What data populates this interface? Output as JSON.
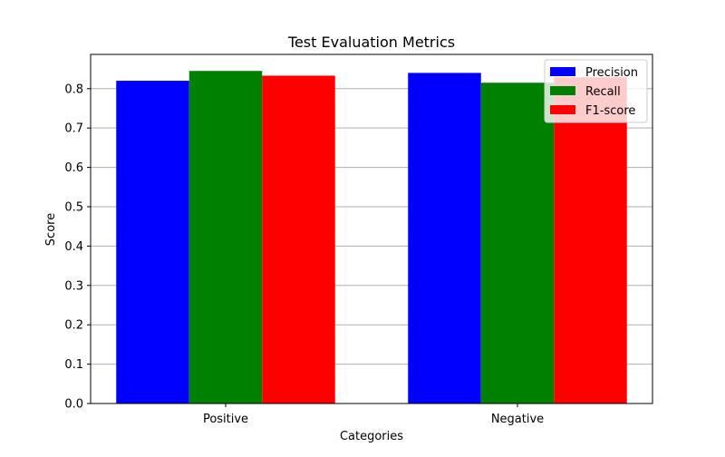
{
  "chart_data": {
    "type": "bar",
    "title": "Test Evaluation Metrics",
    "xlabel": "Categories",
    "ylabel": "Score",
    "categories": [
      "Positive",
      "Negative"
    ],
    "series": [
      {
        "name": "Precision",
        "color": "#0000ff",
        "values": [
          0.82,
          0.84
        ]
      },
      {
        "name": "Recall",
        "color": "#008000",
        "values": [
          0.845,
          0.815
        ]
      },
      {
        "name": "F1-score",
        "color": "#ff0000",
        "values": [
          0.833,
          0.829
        ]
      }
    ],
    "ylim": [
      0,
      0.887
    ],
    "yticks": [
      "0.0",
      "0.1",
      "0.2",
      "0.3",
      "0.4",
      "0.5",
      "0.6",
      "0.7",
      "0.8"
    ],
    "grid": "y",
    "legend_position": "top-right"
  }
}
